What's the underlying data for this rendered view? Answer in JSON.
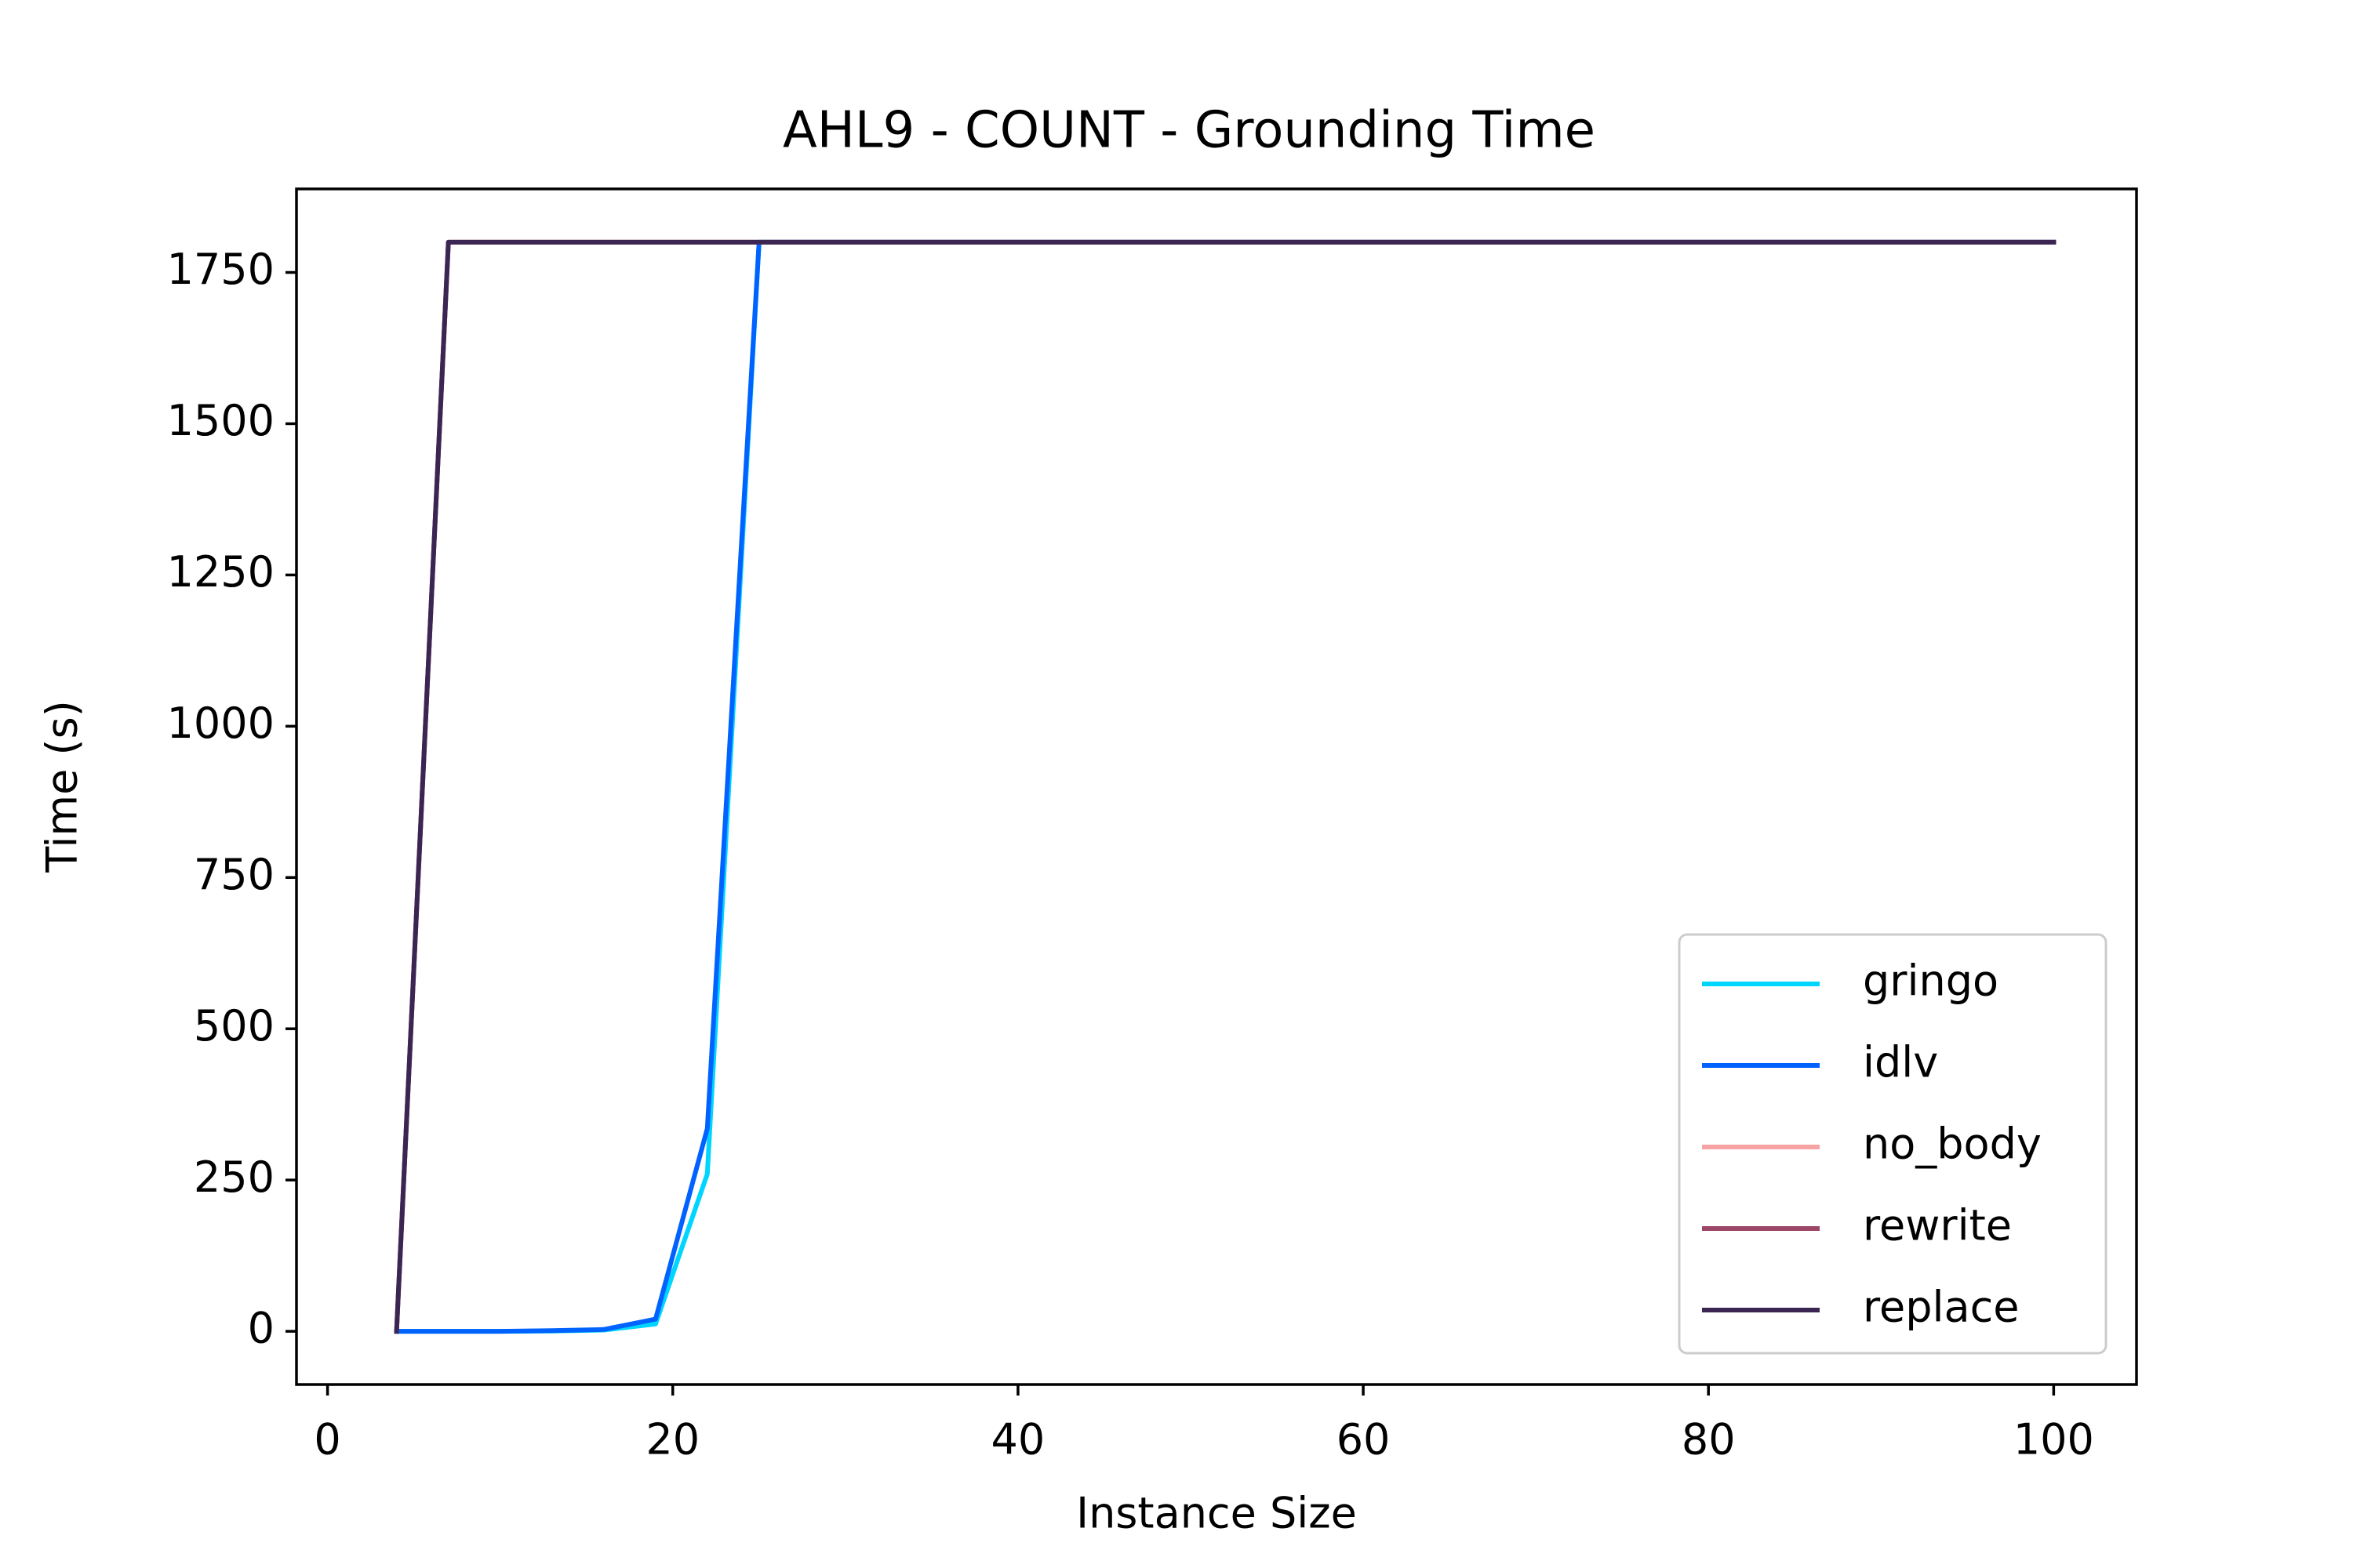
{
  "chart_data": {
    "type": "line",
    "title": "AHL9 - COUNT - Grounding Time",
    "xlabel": "Instance Size",
    "ylabel": "Time (s)",
    "xlim": [
      -1.8,
      104.8
    ],
    "ylim": [
      -88,
      1888
    ],
    "x_ticks": [
      0,
      20,
      40,
      60,
      80,
      100
    ],
    "y_ticks": [
      0,
      250,
      500,
      750,
      1000,
      1250,
      1500,
      1750
    ],
    "grid": false,
    "legend_position": "lower right",
    "series": [
      {
        "name": "gringo",
        "color": "#00d5ff",
        "points": [
          [
            4,
            0
          ],
          [
            7,
            0
          ],
          [
            10,
            0
          ],
          [
            13,
            0.5
          ],
          [
            16,
            2
          ],
          [
            19,
            12
          ],
          [
            22,
            260
          ],
          [
            25,
            1800
          ],
          [
            28,
            1800
          ],
          [
            40,
            1800
          ],
          [
            60,
            1800
          ],
          [
            80,
            1800
          ],
          [
            100,
            1800
          ]
        ]
      },
      {
        "name": "idlv",
        "color": "#0062ff",
        "points": [
          [
            4,
            0
          ],
          [
            7,
            0
          ],
          [
            10,
            0
          ],
          [
            13,
            1
          ],
          [
            16,
            3
          ],
          [
            19,
            20
          ],
          [
            22,
            335
          ],
          [
            25,
            1800
          ],
          [
            28,
            1800
          ],
          [
            40,
            1800
          ],
          [
            60,
            1800
          ],
          [
            80,
            1800
          ],
          [
            100,
            1800
          ]
        ]
      },
      {
        "name": "no_body",
        "color": "#f7a3a3",
        "points": [
          [
            4,
            0
          ],
          [
            7,
            1800
          ],
          [
            10,
            1800
          ],
          [
            20,
            1800
          ],
          [
            40,
            1800
          ],
          [
            60,
            1800
          ],
          [
            80,
            1800
          ],
          [
            100,
            1800
          ]
        ]
      },
      {
        "name": "rewrite",
        "color": "#9c4668",
        "points": [
          [
            4,
            0
          ],
          [
            7,
            1800
          ],
          [
            10,
            1800
          ],
          [
            20,
            1800
          ],
          [
            40,
            1800
          ],
          [
            60,
            1800
          ],
          [
            80,
            1800
          ],
          [
            100,
            1800
          ]
        ]
      },
      {
        "name": "replace",
        "color": "#3b2553",
        "points": [
          [
            4,
            0
          ],
          [
            7,
            1800
          ],
          [
            10,
            1800
          ],
          [
            20,
            1800
          ],
          [
            40,
            1800
          ],
          [
            60,
            1800
          ],
          [
            80,
            1800
          ],
          [
            100,
            1800
          ]
        ]
      }
    ]
  }
}
